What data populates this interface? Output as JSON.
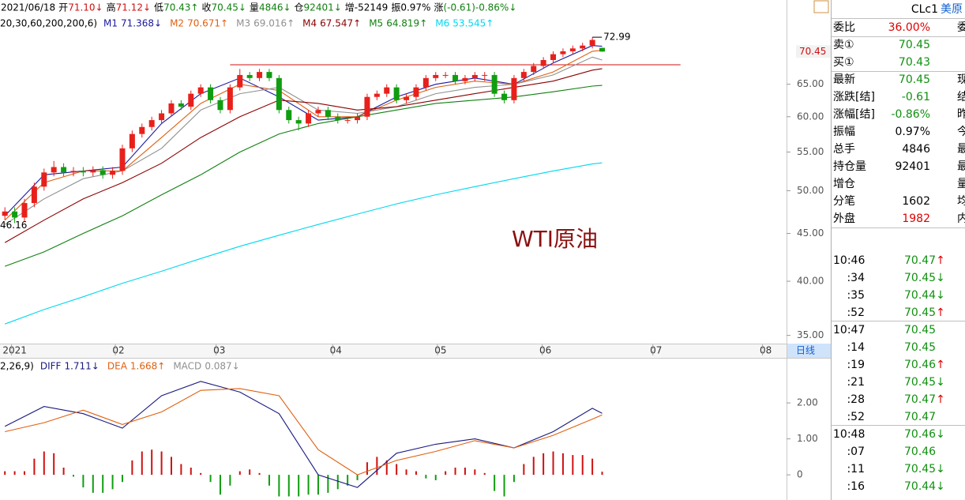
{
  "header": {
    "items": [
      {
        "text": "2021/06/18",
        "color": "#000000"
      },
      {
        "label": "开",
        "text": "71.10↓",
        "color": "#d01010"
      },
      {
        "label": "高",
        "text": "71.12↓",
        "color": "#d01010"
      },
      {
        "label": "低",
        "text": "70.43↑",
        "color": "#108010"
      },
      {
        "label": "收",
        "text": "70.45↓",
        "color": "#108010"
      },
      {
        "label": "量",
        "text": "4846↓",
        "color": "#108010"
      },
      {
        "label": "仓",
        "text": "92401↓",
        "color": "#108010"
      },
      {
        "label": "增",
        "text": "-52149",
        "color": "#000000"
      },
      {
        "label": "振",
        "text": "0.97%",
        "color": "#000000"
      },
      {
        "label": "涨",
        "text": "(-0.61)-0.86%↓",
        "color": "#108010"
      }
    ]
  },
  "chart_data": [
    {
      "type": "candlestick",
      "log_scale": true,
      "ylim": [
        34.3,
        80
      ],
      "yticks": [
        {
          "value": 65,
          "label": "65.00"
        },
        {
          "value": 60,
          "label": "60.00"
        },
        {
          "value": 55,
          "label": "55.00"
        },
        {
          "value": 50,
          "label": "50.00"
        },
        {
          "value": 45,
          "label": "45.00"
        },
        {
          "value": 40,
          "label": "40.00"
        },
        {
          "value": 35,
          "label": "35.00"
        }
      ],
      "xlim": [
        -0.5,
        79.75
      ],
      "xticks": [
        {
          "value": 1,
          "label": "2021"
        },
        {
          "value": 11.6,
          "label": "02"
        },
        {
          "value": 21.9,
          "label": "03"
        },
        {
          "value": 33.8,
          "label": "04"
        },
        {
          "value": 44.5,
          "label": "05"
        },
        {
          "value": 55.2,
          "label": "06"
        },
        {
          "value": 66.5,
          "label": "07"
        },
        {
          "value": 77.7,
          "label": "08"
        }
      ],
      "period": "日线",
      "up_color": "#e8201b",
      "down_color": "#109d10",
      "candles": [
        [
          47.0,
          48.0,
          46.5,
          47.5
        ],
        [
          47.5,
          48.0,
          46.16,
          46.8
        ],
        [
          46.8,
          49.0,
          46.3,
          48.5
        ],
        [
          48.5,
          51.0,
          48.0,
          50.5
        ],
        [
          50.5,
          52.8,
          50.0,
          52.3
        ],
        [
          52.3,
          53.8,
          51.8,
          53.0
        ],
        [
          53.0,
          53.5,
          51.8,
          52.3
        ],
        [
          52.3,
          53.0,
          51.8,
          52.5
        ],
        [
          52.5,
          53.0,
          51.8,
          52.3
        ],
        [
          52.3,
          53.1,
          51.8,
          52.6
        ],
        [
          52.6,
          53.1,
          51.5,
          52.0
        ],
        [
          52.0,
          53.0,
          51.5,
          52.5
        ],
        [
          52.5,
          56.0,
          52.0,
          55.5
        ],
        [
          55.5,
          58.0,
          55.0,
          57.5
        ],
        [
          57.5,
          59.0,
          57.0,
          58.5
        ],
        [
          58.5,
          60.0,
          58.0,
          59.5
        ],
        [
          59.5,
          61.0,
          59.0,
          60.5
        ],
        [
          60.5,
          62.5,
          60.0,
          62.0
        ],
        [
          62.0,
          62.5,
          61.0,
          61.5
        ],
        [
          61.5,
          64.0,
          61.0,
          63.5
        ],
        [
          63.5,
          65.0,
          63.0,
          64.5
        ],
        [
          64.5,
          65.0,
          62.0,
          62.5
        ],
        [
          62.5,
          63.0,
          60.5,
          61.0
        ],
        [
          61.0,
          65.0,
          60.5,
          64.5
        ],
        [
          64.5,
          67.5,
          64.0,
          66.5
        ],
        [
          66.5,
          67.0,
          65.5,
          66.0
        ],
        [
          66.0,
          67.5,
          65.5,
          67.0
        ],
        [
          67.0,
          67.5,
          65.5,
          66.0
        ],
        [
          66.0,
          66.5,
          60.5,
          61.0
        ],
        [
          61.0,
          61.5,
          59.0,
          59.5
        ],
        [
          59.5,
          60.0,
          58.0,
          59.0
        ],
        [
          59.0,
          61.0,
          58.5,
          60.5
        ],
        [
          60.5,
          61.5,
          60.0,
          61.0
        ],
        [
          61.0,
          61.5,
          59.5,
          60.0
        ],
        [
          60.0,
          60.5,
          59.0,
          59.5
        ],
        [
          59.5,
          60.0,
          59.0,
          59.5
        ],
        [
          59.5,
          60.5,
          59.0,
          60.0
        ],
        [
          60.0,
          63.5,
          59.5,
          63.0
        ],
        [
          63.0,
          64.0,
          62.5,
          63.5
        ],
        [
          63.5,
          65.0,
          63.0,
          64.5
        ],
        [
          64.5,
          65.0,
          62.0,
          62.5
        ],
        [
          62.5,
          63.5,
          62.0,
          63.0
        ],
        [
          63.0,
          65.0,
          62.5,
          64.5
        ],
        [
          64.5,
          66.5,
          64.0,
          66.0
        ],
        [
          66.0,
          67.0,
          65.5,
          66.5
        ],
        [
          66.5,
          67.0,
          66.0,
          66.5
        ],
        [
          66.5,
          67.0,
          65.0,
          65.5
        ],
        [
          65.5,
          66.5,
          65.0,
          66.0
        ],
        [
          66.0,
          67.0,
          65.5,
          66.5
        ],
        [
          66.5,
          67.0,
          65.5,
          66.5
        ],
        [
          66.5,
          67.0,
          63.0,
          63.5
        ],
        [
          63.5,
          64.0,
          62.0,
          62.5
        ],
        [
          62.5,
          66.5,
          62.0,
          66.0
        ],
        [
          66.0,
          67.5,
          65.5,
          67.0
        ],
        [
          67.0,
          68.5,
          66.5,
          68.0
        ],
        [
          68.0,
          69.5,
          67.5,
          69.0
        ],
        [
          69.0,
          70.5,
          68.5,
          70.0
        ],
        [
          70.0,
          71.0,
          69.5,
          70.5
        ],
        [
          70.5,
          71.5,
          70.0,
          71.0
        ],
        [
          71.0,
          72.0,
          70.5,
          71.5
        ],
        [
          71.5,
          72.99,
          71.0,
          72.5
        ],
        [
          71.1,
          71.12,
          70.43,
          70.45
        ]
      ],
      "params": "20,30,60,200,200,6)",
      "line_x": [
        0,
        4,
        8,
        12,
        16,
        20,
        24,
        28,
        32,
        36,
        40,
        44,
        48,
        52,
        56,
        60,
        61
      ],
      "series": [
        {
          "name": "M1",
          "legend": "71.368↓",
          "color": "#1a1aa0",
          "values": [
            47,
            52,
            52.5,
            53,
            59,
            63.5,
            66,
            63,
            59.5,
            60,
            63,
            65,
            66,
            65,
            68.5,
            71.5,
            71.37
          ]
        },
        {
          "name": "M2",
          "legend": "70.671↑",
          "color": "#e06010",
          "values": [
            46.5,
            51,
            52.5,
            52.5,
            57,
            62,
            65,
            64,
            60,
            60,
            62.5,
            64.5,
            65.5,
            65,
            67,
            70.5,
            70.67
          ]
        },
        {
          "name": "M3",
          "legend": "69.016↑",
          "color": "#909090",
          "values": [
            46,
            49,
            51.5,
            52.5,
            55.5,
            61,
            63.5,
            64.5,
            61,
            60.5,
            61.5,
            63.5,
            64.5,
            65,
            66.5,
            69.5,
            69.0
          ]
        },
        {
          "name": "M4",
          "legend": "67.547↑",
          "color": "#8b0000",
          "values": [
            44,
            46.5,
            49,
            51,
            53.5,
            57,
            60,
            62.5,
            62,
            61,
            61.5,
            62.5,
            63.5,
            64.5,
            65.5,
            67.3,
            67.55
          ]
        },
        {
          "name": "M5",
          "legend": "64.819↑",
          "color": "#108010",
          "values": [
            41.5,
            43,
            45,
            47,
            49.5,
            52,
            55,
            57.5,
            59,
            60,
            61,
            62,
            62.5,
            63,
            63.8,
            64.7,
            64.82
          ]
        },
        {
          "name": "M6",
          "legend": "53.545↑",
          "color": "#00d8f0",
          "values": [
            36.0,
            37.3,
            38.5,
            39.8,
            41.0,
            42.3,
            43.6,
            44.8,
            46.0,
            47.2,
            48.4,
            49.5,
            50.5,
            51.5,
            52.5,
            53.4,
            53.55
          ]
        }
      ],
      "reference_line": {
        "value": 68.2,
        "from": 23,
        "to": 69,
        "color": "#d01010"
      },
      "annotation": "WTI原油"
    },
    {
      "type": "macd",
      "ylim": [
        -0.7,
        3.21
      ],
      "yticks": [
        {
          "value": 2,
          "label": "2.00"
        },
        {
          "value": 1,
          "label": "1.00"
        },
        0
      ],
      "xlim": [
        -0.5,
        79.75
      ],
      "params": "2,26,9)",
      "histogram": {
        "name": "MACD",
        "legend": "0.087↓",
        "up_color": "#d01010",
        "down_color": "#109d10",
        "values": [
          0.1,
          0.1,
          0.1,
          0.45,
          0.65,
          0.6,
          0.2,
          -0.05,
          -0.35,
          -0.5,
          -0.5,
          -0.4,
          -0.2,
          0.4,
          0.65,
          0.7,
          0.65,
          0.5,
          0.3,
          0.2,
          0.05,
          -0.2,
          -0.55,
          -0.3,
          0.1,
          0.15,
          0.05,
          -0.3,
          -0.6,
          -0.6,
          -0.6,
          -0.55,
          -0.55,
          -0.5,
          -0.4,
          -0.3,
          -0.15,
          0.35,
          0.5,
          0.4,
          0.3,
          0.15,
          0.1,
          -0.1,
          -0.15,
          0.1,
          0.2,
          0.2,
          0.15,
          0.05,
          -0.45,
          -0.6,
          -0.2,
          0.3,
          0.5,
          0.6,
          0.65,
          0.6,
          0.55,
          0.55,
          0.45,
          0.087
        ]
      },
      "line_x": [
        0,
        4,
        8,
        12,
        16,
        20,
        24,
        28,
        32,
        36,
        40,
        44,
        48,
        52,
        56,
        60,
        61
      ],
      "series": [
        {
          "name": "DIFF",
          "legend": "1.711↓",
          "color": "#1a1a80",
          "values": [
            1.35,
            1.9,
            1.7,
            1.3,
            2.2,
            2.6,
            2.3,
            1.7,
            0.0,
            -0.35,
            0.6,
            0.85,
            1.0,
            0.75,
            1.2,
            1.85,
            1.711
          ]
        },
        {
          "name": "DEA",
          "legend": "1.668↑",
          "color": "#e06010",
          "values": [
            1.2,
            1.45,
            1.8,
            1.4,
            1.75,
            2.35,
            2.4,
            2.2,
            0.7,
            0.0,
            0.4,
            0.65,
            0.95,
            0.75,
            1.1,
            1.55,
            1.668
          ]
        }
      ]
    }
  ],
  "quote_panel": {
    "symbol": "CLc1",
    "name": "美原",
    "rows": [
      {
        "label": "委比",
        "value": "36.00%",
        "color": "#e00000",
        "side": "委"
      },
      {
        "label": "卖①",
        "value": 70.45,
        "color": "#109010"
      },
      {
        "label": "买①",
        "value": 70.43,
        "color": "#109010"
      },
      {
        "label": "最新",
        "value": 70.45,
        "color": "#109010",
        "side": "现"
      },
      {
        "label": "涨跌[结]",
        "value": -0.61,
        "color": "#109010",
        "side": "结"
      },
      {
        "label": "涨幅[结]",
        "value": "-0.86%",
        "color": "#109010",
        "side": "昨"
      },
      {
        "label": "振幅",
        "value": "0.97%",
        "color": "#000000",
        "side": "今"
      },
      {
        "label": "总手",
        "value": 4846,
        "color": "#000000",
        "side": "最"
      },
      {
        "label": "持仓量",
        "value": 92401,
        "color": "#000000",
        "side": "最"
      },
      {
        "label": "增仓",
        "side": "量"
      },
      {
        "label": "分笔",
        "value": 1602,
        "color": "#000000",
        "side": "均"
      },
      {
        "label": "外盘",
        "value": 1982,
        "color": "#e00000",
        "side": "内"
      }
    ],
    "ticks": [
      {
        "time": "10:46",
        "price": 70.47,
        "dir": "↑"
      },
      {
        "time": ":34",
        "price": 70.45,
        "dir": "↓"
      },
      {
        "time": ":35",
        "price": 70.44,
        "dir": "↓"
      },
      {
        "time": ":52",
        "price": 70.45,
        "dir": "↑"
      },
      {
        "time": "10:47",
        "price": 70.45
      },
      {
        "time": ":14",
        "price": 70.45
      },
      {
        "time": ":19",
        "price": 70.46,
        "dir": "↑"
      },
      {
        "time": ":21",
        "price": 70.45,
        "dir": "↓"
      },
      {
        "time": ":28",
        "price": 70.47,
        "dir": "↑"
      },
      {
        "time": ":52",
        "price": 70.47
      },
      {
        "time": "10:48",
        "price": 70.46,
        "dir": "↓"
      },
      {
        "time": ":07",
        "price": 70.46
      },
      {
        "time": ":11",
        "price": 70.45,
        "dir": "↓"
      },
      {
        "time": ":16",
        "price": 70.44,
        "dir": "↓"
      }
    ]
  }
}
